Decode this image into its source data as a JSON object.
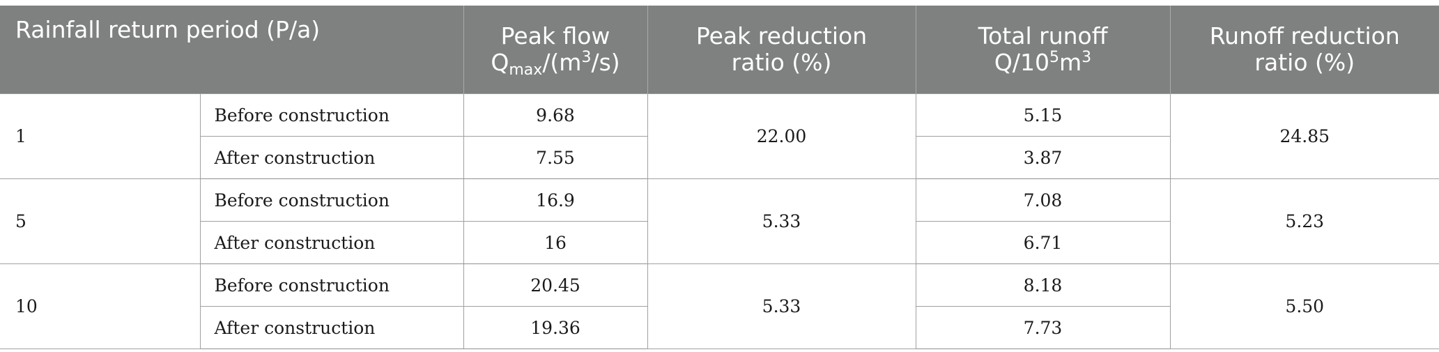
{
  "table": {
    "headers": {
      "period": "Rainfall return period (P/a)",
      "peak_flow_line1": "Peak flow",
      "peak_flow_q": "Q",
      "peak_flow_sub": "max",
      "peak_flow_unit_pre": "/(m",
      "peak_flow_unit_sup": "3",
      "peak_flow_unit_post": "/s)",
      "peak_reduction_line1": "Peak reduction",
      "peak_reduction_line2": "ratio (%)",
      "total_runoff_line1": "Total runoff",
      "total_runoff_pre": "Q/10",
      "total_runoff_sup1": "5",
      "total_runoff_mid": "m",
      "total_runoff_sup2": "3",
      "runoff_reduction_line1": "Runoff reduction",
      "runoff_reduction_line2": "ratio (%)"
    },
    "groups": [
      {
        "period": "1",
        "peak_reduction": "22.00",
        "runoff_reduction": "24.85",
        "rows": [
          {
            "condition": "Before construction",
            "peak_flow": "9.68",
            "total_runoff": "5.15"
          },
          {
            "condition": "After construction",
            "peak_flow": "7.55",
            "total_runoff": "3.87"
          }
        ]
      },
      {
        "period": "5",
        "peak_reduction": "5.33",
        "runoff_reduction": "5.23",
        "rows": [
          {
            "condition": "Before construction",
            "peak_flow": "16.9",
            "total_runoff": "7.08"
          },
          {
            "condition": "After construction",
            "peak_flow": "16",
            "total_runoff": "6.71"
          }
        ]
      },
      {
        "period": "10",
        "peak_reduction": "5.33",
        "runoff_reduction": "5.50",
        "rows": [
          {
            "condition": "Before construction",
            "peak_flow": "20.45",
            "total_runoff": "8.18"
          },
          {
            "condition": "After construction",
            "peak_flow": "19.36",
            "total_runoff": "7.73"
          }
        ]
      }
    ]
  }
}
